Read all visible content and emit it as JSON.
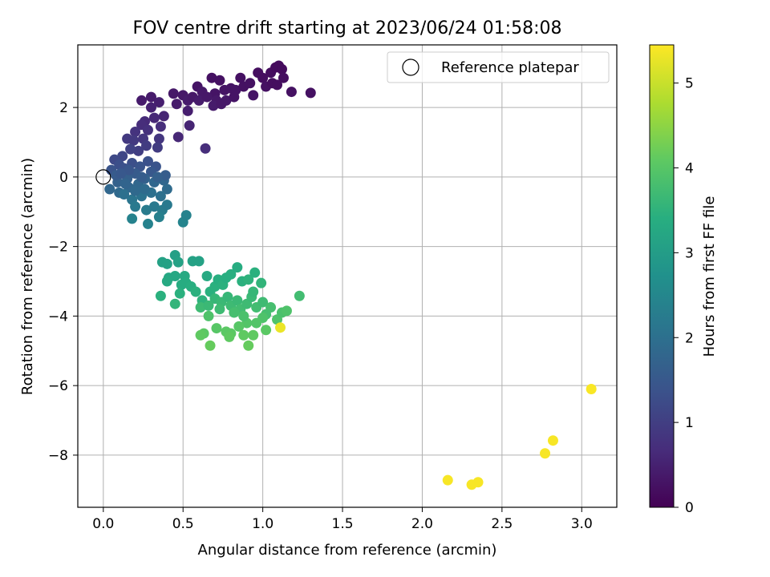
{
  "chart_data": {
    "type": "scatter",
    "title": "FOV centre drift starting at 2023/06/24 01:58:08",
    "xlabel": "Angular distance from reference (arcmin)",
    "ylabel": "Rotation from reference (arcmin)",
    "xlim": [
      -0.16,
      3.22
    ],
    "ylim": [
      -9.5,
      3.8
    ],
    "xticks": [
      "0.0",
      "0.5",
      "1.0",
      "1.5",
      "2.0",
      "2.5",
      "3.0"
    ],
    "yticks": [
      "2",
      "0",
      "−2",
      "−4",
      "−6",
      "−8"
    ],
    "grid": true,
    "legend": {
      "placement": "top-right",
      "entries": [
        "Reference platepar"
      ]
    },
    "colorbar": {
      "label": "Hours from first FF file",
      "colormap": "viridis",
      "range": [
        0,
        5.45
      ],
      "ticks": [
        "0",
        "1",
        "2",
        "3",
        "4",
        "5"
      ]
    },
    "reference_point": {
      "x": 0.0,
      "y": 0.0
    },
    "points": [
      {
        "x": 0.24,
        "y": 2.2,
        "c": 0.4
      },
      {
        "x": 0.3,
        "y": 2.3,
        "c": 0.4
      },
      {
        "x": 0.35,
        "y": 2.15,
        "c": 0.45
      },
      {
        "x": 0.3,
        "y": 2.0,
        "c": 0.5
      },
      {
        "x": 0.44,
        "y": 2.4,
        "c": 0.35
      },
      {
        "x": 0.5,
        "y": 2.35,
        "c": 0.35
      },
      {
        "x": 0.46,
        "y": 2.1,
        "c": 0.4
      },
      {
        "x": 0.53,
        "y": 2.2,
        "c": 0.4
      },
      {
        "x": 0.56,
        "y": 2.3,
        "c": 0.35
      },
      {
        "x": 0.59,
        "y": 2.6,
        "c": 0.3
      },
      {
        "x": 0.62,
        "y": 2.45,
        "c": 0.35
      },
      {
        "x": 0.6,
        "y": 2.2,
        "c": 0.4
      },
      {
        "x": 0.68,
        "y": 2.85,
        "c": 0.25
      },
      {
        "x": 0.73,
        "y": 2.78,
        "c": 0.25
      },
      {
        "x": 0.7,
        "y": 2.4,
        "c": 0.3
      },
      {
        "x": 0.76,
        "y": 2.5,
        "c": 0.3
      },
      {
        "x": 0.71,
        "y": 2.2,
        "c": 0.35
      },
      {
        "x": 0.69,
        "y": 2.05,
        "c": 0.4
      },
      {
        "x": 0.74,
        "y": 2.1,
        "c": 0.35
      },
      {
        "x": 0.8,
        "y": 2.55,
        "c": 0.3
      },
      {
        "x": 0.83,
        "y": 2.5,
        "c": 0.3
      },
      {
        "x": 0.86,
        "y": 2.85,
        "c": 0.25
      },
      {
        "x": 0.88,
        "y": 2.6,
        "c": 0.25
      },
      {
        "x": 0.92,
        "y": 2.7,
        "c": 0.25
      },
      {
        "x": 0.94,
        "y": 2.35,
        "c": 0.3
      },
      {
        "x": 0.97,
        "y": 3.0,
        "c": 0.2
      },
      {
        "x": 1.0,
        "y": 2.85,
        "c": 0.2
      },
      {
        "x": 1.02,
        "y": 2.6,
        "c": 0.25
      },
      {
        "x": 1.05,
        "y": 3.0,
        "c": 0.2
      },
      {
        "x": 1.06,
        "y": 2.7,
        "c": 0.2
      },
      {
        "x": 1.08,
        "y": 3.15,
        "c": 0.15
      },
      {
        "x": 1.1,
        "y": 3.2,
        "c": 0.15
      },
      {
        "x": 1.12,
        "y": 3.1,
        "c": 0.15
      },
      {
        "x": 1.13,
        "y": 2.85,
        "c": 0.2
      },
      {
        "x": 1.09,
        "y": 2.65,
        "c": 0.2
      },
      {
        "x": 1.18,
        "y": 2.45,
        "c": 0.25
      },
      {
        "x": 1.3,
        "y": 2.42,
        "c": 0.25
      },
      {
        "x": 0.77,
        "y": 2.2,
        "c": 0.35
      },
      {
        "x": 0.82,
        "y": 2.3,
        "c": 0.3
      },
      {
        "x": 0.65,
        "y": 2.3,
        "c": 0.35
      },
      {
        "x": 0.53,
        "y": 1.9,
        "c": 0.45
      },
      {
        "x": 0.47,
        "y": 1.15,
        "c": 0.6
      },
      {
        "x": 0.64,
        "y": 0.82,
        "c": 0.7
      },
      {
        "x": 0.54,
        "y": 1.48,
        "c": 0.55
      },
      {
        "x": 0.38,
        "y": 1.75,
        "c": 0.55
      },
      {
        "x": 0.32,
        "y": 1.7,
        "c": 0.6
      },
      {
        "x": 0.26,
        "y": 1.6,
        "c": 0.65
      },
      {
        "x": 0.24,
        "y": 1.5,
        "c": 0.7
      },
      {
        "x": 0.28,
        "y": 1.35,
        "c": 0.75
      },
      {
        "x": 0.36,
        "y": 1.45,
        "c": 0.7
      },
      {
        "x": 0.2,
        "y": 1.3,
        "c": 0.8
      },
      {
        "x": 0.15,
        "y": 1.1,
        "c": 0.9
      },
      {
        "x": 0.19,
        "y": 1.05,
        "c": 0.9
      },
      {
        "x": 0.25,
        "y": 1.1,
        "c": 0.85
      },
      {
        "x": 0.35,
        "y": 1.1,
        "c": 0.85
      },
      {
        "x": 0.34,
        "y": 0.85,
        "c": 0.95
      },
      {
        "x": 0.27,
        "y": 0.9,
        "c": 0.95
      },
      {
        "x": 0.22,
        "y": 0.75,
        "c": 1.0
      },
      {
        "x": 0.17,
        "y": 0.8,
        "c": 1.05
      },
      {
        "x": 0.12,
        "y": 0.6,
        "c": 1.15
      },
      {
        "x": 0.07,
        "y": 0.5,
        "c": 1.2
      },
      {
        "x": 0.1,
        "y": 0.35,
        "c": 1.3
      },
      {
        "x": 0.05,
        "y": 0.2,
        "c": 1.4
      },
      {
        "x": 0.13,
        "y": 0.25,
        "c": 1.35
      },
      {
        "x": 0.18,
        "y": 0.4,
        "c": 1.3
      },
      {
        "x": 0.23,
        "y": 0.3,
        "c": 1.4
      },
      {
        "x": 0.28,
        "y": 0.45,
        "c": 1.35
      },
      {
        "x": 0.33,
        "y": 0.3,
        "c": 1.4
      },
      {
        "x": 0.3,
        "y": 0.15,
        "c": 1.5
      },
      {
        "x": 0.2,
        "y": 0.1,
        "c": 1.55
      },
      {
        "x": 0.15,
        "y": -0.05,
        "c": 1.65
      },
      {
        "x": 0.09,
        "y": -0.15,
        "c": 1.7
      },
      {
        "x": 0.04,
        "y": -0.35,
        "c": 1.8
      },
      {
        "x": 0.1,
        "y": -0.45,
        "c": 1.85
      },
      {
        "x": 0.16,
        "y": -0.3,
        "c": 1.8
      },
      {
        "x": 0.22,
        "y": -0.2,
        "c": 1.8
      },
      {
        "x": 0.26,
        "y": -0.05,
        "c": 1.7
      },
      {
        "x": 0.32,
        "y": -0.15,
        "c": 1.8
      },
      {
        "x": 0.38,
        "y": -0.1,
        "c": 1.8
      },
      {
        "x": 0.4,
        "y": -0.35,
        "c": 1.9
      },
      {
        "x": 0.36,
        "y": -0.55,
        "c": 2.0
      },
      {
        "x": 0.3,
        "y": -0.45,
        "c": 2.0
      },
      {
        "x": 0.24,
        "y": -0.55,
        "c": 2.05
      },
      {
        "x": 0.18,
        "y": -0.65,
        "c": 2.1
      },
      {
        "x": 0.13,
        "y": -0.5,
        "c": 2.0
      },
      {
        "x": 0.2,
        "y": -0.85,
        "c": 2.2
      },
      {
        "x": 0.27,
        "y": -0.95,
        "c": 2.25
      },
      {
        "x": 0.32,
        "y": -0.85,
        "c": 2.2
      },
      {
        "x": 0.37,
        "y": -0.95,
        "c": 2.25
      },
      {
        "x": 0.4,
        "y": -0.8,
        "c": 2.2
      },
      {
        "x": 0.35,
        "y": -1.15,
        "c": 2.35
      },
      {
        "x": 0.28,
        "y": -1.35,
        "c": 2.4
      },
      {
        "x": 0.18,
        "y": -1.2,
        "c": 2.4
      },
      {
        "x": 0.5,
        "y": -1.3,
        "c": 2.45
      },
      {
        "x": 0.52,
        "y": -1.1,
        "c": 2.4
      },
      {
        "x": 0.39,
        "y": 0.05,
        "c": 1.6
      },
      {
        "x": 0.16,
        "y": 0.2,
        "c": 1.45
      },
      {
        "x": 0.08,
        "y": 0.05,
        "c": 1.55
      },
      {
        "x": 0.2,
        "y": -0.4,
        "c": 1.85
      },
      {
        "x": 0.26,
        "y": -0.35,
        "c": 1.9
      },
      {
        "x": 0.11,
        "y": 0.1,
        "c": 1.5
      },
      {
        "x": 0.24,
        "y": 0.0,
        "c": 1.6
      },
      {
        "x": 0.34,
        "y": 0.0,
        "c": 1.65
      },
      {
        "x": 0.14,
        "y": -0.2,
        "c": 1.75
      },
      {
        "x": 0.37,
        "y": -2.45,
        "c": 3.1
      },
      {
        "x": 0.4,
        "y": -2.5,
        "c": 3.1
      },
      {
        "x": 0.45,
        "y": -2.25,
        "c": 3.05
      },
      {
        "x": 0.47,
        "y": -2.45,
        "c": 3.1
      },
      {
        "x": 0.56,
        "y": -2.42,
        "c": 3.1
      },
      {
        "x": 0.6,
        "y": -2.42,
        "c": 3.1
      },
      {
        "x": 0.41,
        "y": -2.9,
        "c": 3.25
      },
      {
        "x": 0.4,
        "y": -3.0,
        "c": 3.3
      },
      {
        "x": 0.45,
        "y": -2.85,
        "c": 3.25
      },
      {
        "x": 0.51,
        "y": -2.85,
        "c": 3.3
      },
      {
        "x": 0.49,
        "y": -3.1,
        "c": 3.35
      },
      {
        "x": 0.52,
        "y": -3.05,
        "c": 3.35
      },
      {
        "x": 0.55,
        "y": -3.15,
        "c": 3.4
      },
      {
        "x": 0.58,
        "y": -3.3,
        "c": 3.45
      },
      {
        "x": 0.48,
        "y": -3.35,
        "c": 3.45
      },
      {
        "x": 0.45,
        "y": -3.65,
        "c": 3.55
      },
      {
        "x": 0.36,
        "y": -3.42,
        "c": 3.45
      },
      {
        "x": 0.62,
        "y": -3.55,
        "c": 3.5
      },
      {
        "x": 0.65,
        "y": -2.85,
        "c": 3.3
      },
      {
        "x": 0.67,
        "y": -3.3,
        "c": 3.45
      },
      {
        "x": 0.7,
        "y": -3.15,
        "c": 3.45
      },
      {
        "x": 0.72,
        "y": -2.95,
        "c": 3.4
      },
      {
        "x": 0.75,
        "y": -3.1,
        "c": 3.45
      },
      {
        "x": 0.77,
        "y": -2.9,
        "c": 3.4
      },
      {
        "x": 0.8,
        "y": -2.8,
        "c": 3.4
      },
      {
        "x": 0.84,
        "y": -2.6,
        "c": 3.35
      },
      {
        "x": 0.87,
        "y": -3.0,
        "c": 3.45
      },
      {
        "x": 0.91,
        "y": -2.95,
        "c": 3.5
      },
      {
        "x": 0.95,
        "y": -2.75,
        "c": 3.45
      },
      {
        "x": 0.99,
        "y": -3.05,
        "c": 3.55
      },
      {
        "x": 0.7,
        "y": -3.5,
        "c": 3.6
      },
      {
        "x": 0.74,
        "y": -3.6,
        "c": 3.65
      },
      {
        "x": 0.78,
        "y": -3.45,
        "c": 3.6
      },
      {
        "x": 0.8,
        "y": -3.7,
        "c": 3.7
      },
      {
        "x": 0.84,
        "y": -3.55,
        "c": 3.65
      },
      {
        "x": 0.86,
        "y": -3.8,
        "c": 3.75
      },
      {
        "x": 0.9,
        "y": -3.65,
        "c": 3.7
      },
      {
        "x": 0.93,
        "y": -3.45,
        "c": 3.65
      },
      {
        "x": 0.96,
        "y": -3.75,
        "c": 3.75
      },
      {
        "x": 1.0,
        "y": -3.6,
        "c": 3.7
      },
      {
        "x": 1.02,
        "y": -3.95,
        "c": 3.8
      },
      {
        "x": 1.05,
        "y": -3.75,
        "c": 3.8
      },
      {
        "x": 1.09,
        "y": -4.1,
        "c": 3.9
      },
      {
        "x": 1.12,
        "y": -3.9,
        "c": 3.85
      },
      {
        "x": 1.15,
        "y": -3.85,
        "c": 3.9
      },
      {
        "x": 1.23,
        "y": -3.42,
        "c": 3.75
      },
      {
        "x": 1.0,
        "y": -4.05,
        "c": 3.9
      },
      {
        "x": 0.96,
        "y": -4.2,
        "c": 3.95
      },
      {
        "x": 0.9,
        "y": -4.2,
        "c": 3.95
      },
      {
        "x": 0.85,
        "y": -4.3,
        "c": 4.0
      },
      {
        "x": 0.8,
        "y": -4.5,
        "c": 4.05
      },
      {
        "x": 0.77,
        "y": -4.45,
        "c": 4.05
      },
      {
        "x": 0.71,
        "y": -4.35,
        "c": 4.0
      },
      {
        "x": 0.66,
        "y": -4.0,
        "c": 3.9
      },
      {
        "x": 0.63,
        "y": -4.5,
        "c": 4.05
      },
      {
        "x": 0.61,
        "y": -4.55,
        "c": 4.1
      },
      {
        "x": 0.67,
        "y": -4.85,
        "c": 4.15
      },
      {
        "x": 0.79,
        "y": -4.6,
        "c": 4.1
      },
      {
        "x": 0.88,
        "y": -4.55,
        "c": 4.1
      },
      {
        "x": 0.91,
        "y": -4.85,
        "c": 4.15
      },
      {
        "x": 0.94,
        "y": -4.55,
        "c": 4.1
      },
      {
        "x": 1.02,
        "y": -4.4,
        "c": 4.05
      },
      {
        "x": 0.61,
        "y": -3.75,
        "c": 3.7
      },
      {
        "x": 0.66,
        "y": -3.7,
        "c": 3.65
      },
      {
        "x": 0.73,
        "y": -3.8,
        "c": 3.7
      },
      {
        "x": 0.82,
        "y": -3.9,
        "c": 3.8
      },
      {
        "x": 0.88,
        "y": -4.0,
        "c": 3.85
      },
      {
        "x": 0.94,
        "y": -3.3,
        "c": 3.6
      },
      {
        "x": 1.11,
        "y": -4.33,
        "c": 5.3
      },
      {
        "x": 2.16,
        "y": -8.72,
        "c": 5.4
      },
      {
        "x": 2.31,
        "y": -8.85,
        "c": 5.4
      },
      {
        "x": 2.35,
        "y": -8.78,
        "c": 5.4
      },
      {
        "x": 2.77,
        "y": -7.95,
        "c": 5.4
      },
      {
        "x": 2.82,
        "y": -7.58,
        "c": 5.4
      },
      {
        "x": 3.06,
        "y": -6.1,
        "c": 5.42
      }
    ]
  }
}
